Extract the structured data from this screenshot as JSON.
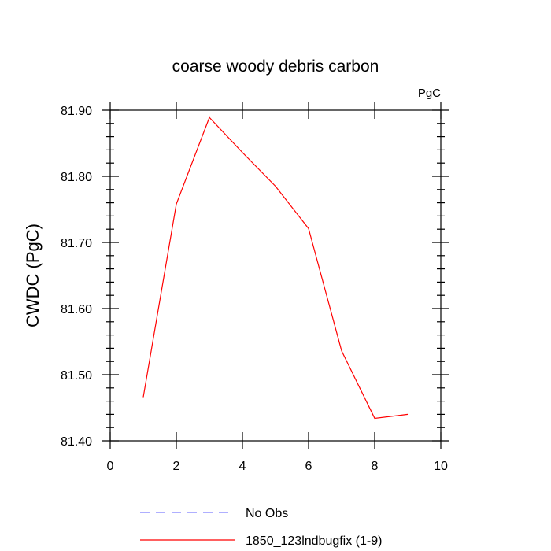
{
  "chart_data": {
    "type": "line",
    "title": "coarse woody debris carbon",
    "unit_label": "PgC",
    "xlabel": "",
    "ylabel": "CWDC  (PgC)",
    "xlim": [
      0,
      10
    ],
    "ylim": [
      81.4,
      81.9
    ],
    "x_ticks": [
      0,
      2,
      4,
      6,
      8,
      10
    ],
    "x_tick_labels": [
      "0",
      "2",
      "4",
      "6",
      "8",
      "10"
    ],
    "y_ticks": [
      81.4,
      81.5,
      81.6,
      81.7,
      81.8,
      81.9
    ],
    "y_tick_labels": [
      "81.40",
      "81.50",
      "81.60",
      "81.70",
      "81.80",
      "81.90"
    ],
    "grid": false,
    "legend_position": "bottom",
    "series": [
      {
        "name": "No Obs",
        "color": "#7f7fff",
        "dash": "dashed",
        "x": [],
        "y": []
      },
      {
        "name": "1850_123lndbugfix (1-9)",
        "color": "#ff0000",
        "dash": "solid",
        "x": [
          1,
          2,
          3,
          4,
          5,
          6,
          7,
          8,
          9
        ],
        "y": [
          81.466,
          81.758,
          81.889,
          81.836,
          81.785,
          81.721,
          81.536,
          81.434,
          81.44
        ]
      }
    ]
  }
}
